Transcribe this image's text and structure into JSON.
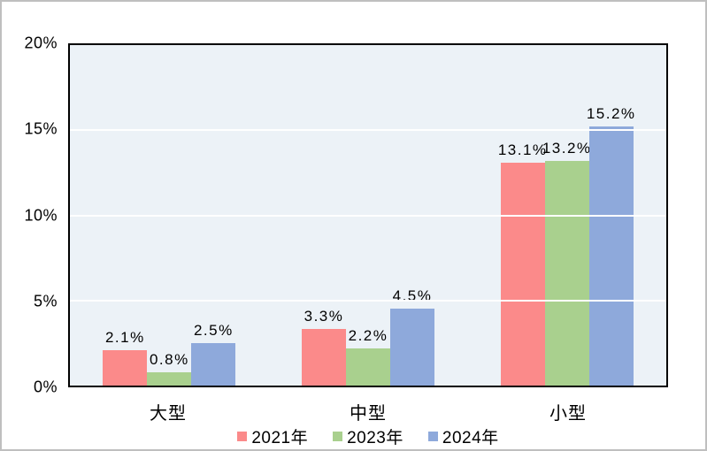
{
  "chart_data": {
    "type": "bar",
    "title": "",
    "categories": [
      "大型",
      "中型",
      "小型"
    ],
    "series": [
      {
        "name": "2021年",
        "color": "#fb8a8a",
        "values": [
          2.1,
          3.3,
          13.1
        ],
        "labels": [
          "2.1%",
          "3.3%",
          "13.1%"
        ]
      },
      {
        "name": "2023年",
        "color": "#a9d08e",
        "values": [
          0.8,
          2.2,
          13.2
        ],
        "labels": [
          "0.8%",
          "2.2%",
          "13.2%"
        ]
      },
      {
        "name": "2024年",
        "color": "#8ea9db",
        "values": [
          2.5,
          4.5,
          15.2
        ],
        "labels": [
          "2.5%",
          "4.5%",
          "15.2%"
        ]
      }
    ],
    "ylim": [
      0,
      20
    ],
    "yticks": [
      {
        "value": 0,
        "label": "0%"
      },
      {
        "value": 5,
        "label": "5%"
      },
      {
        "value": 10,
        "label": "10%"
      },
      {
        "value": 15,
        "label": "15%"
      },
      {
        "value": 20,
        "label": "20%"
      }
    ],
    "grid": true,
    "legend_position": "bottom",
    "colors": {
      "plot_background": "#ecf2f7",
      "gridline": "#ffffff",
      "axis_border": "#000000",
      "frame_border": "#bfbfbf",
      "text": "#000000"
    }
  }
}
